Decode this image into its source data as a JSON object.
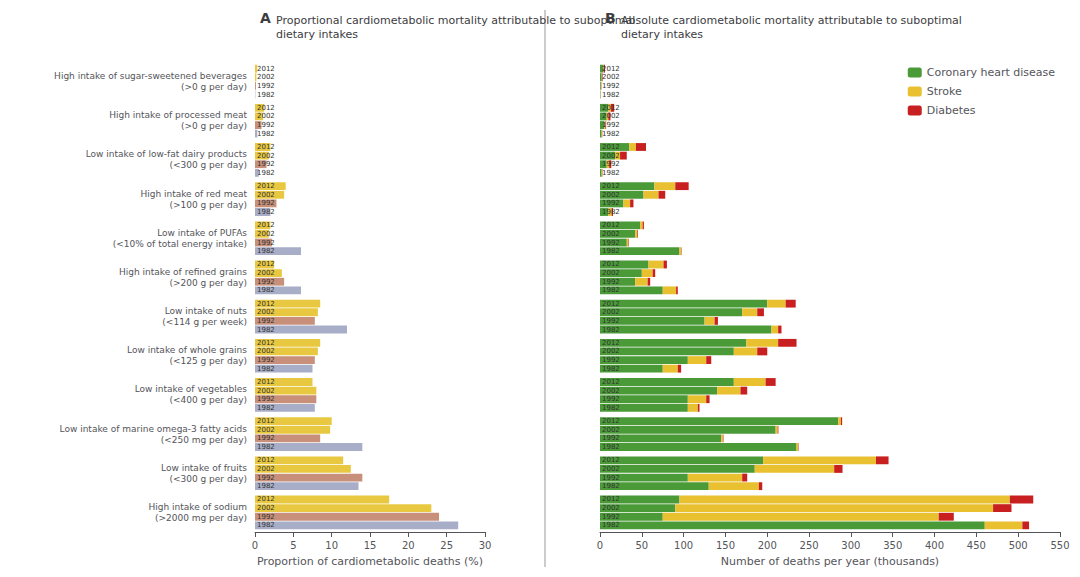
{
  "chart_data": [
    {
      "type": "bar",
      "orientation": "horizontal",
      "title": "A",
      "subtitle": "Proportional cardiometabolic mortality attributable to suboptimal\ndietary intakes",
      "xlabel": "Proportion of cardiometabolic deaths (%)",
      "categories": [
        "High intake of sugar-sweetened beverages\n(>0 g per day)",
        "High intake of processed meat\n(>0 g per day)",
        "Low intake of low-fat dairy products\n(<300 g per day)",
        "High intake of red meat\n(>100 g per day)",
        "Low intake of PUFAs\n(<10% of total energy intake)",
        "High intake of refined grains\n(>200 g per day)",
        "Low intake of nuts\n(<114 g per week)",
        "Low intake of whole grains\n(<125 g per day)",
        "Low intake of vegetables\n(<400 g per day)",
        "Low intake of marine omega-3 fatty acids\n(<250 mg per day)",
        "Low intake of fruits\n(<300 g per day)",
        "High intake of sodium\n(>2000 mg per day)"
      ],
      "series": [
        {
          "name": "2012",
          "color": "#e8c840",
          "values": [
            0.28,
            1.2,
            2.0,
            4.0,
            2.0,
            2.5,
            8.5,
            8.5,
            7.5,
            10.0,
            11.5,
            17.5
          ]
        },
        {
          "name": "2002",
          "color": "#e8c840",
          "values": [
            0.18,
            1.05,
            1.8,
            3.8,
            1.8,
            3.5,
            8.2,
            8.2,
            8.0,
            9.8,
            12.5,
            23.0
          ]
        },
        {
          "name": "1992",
          "color": "#c8907a",
          "values": [
            0.12,
            0.85,
            1.5,
            2.8,
            2.2,
            3.8,
            7.8,
            7.8,
            8.0,
            8.5,
            14.0,
            24.0
          ]
        },
        {
          "name": "1982",
          "color": "#a8aec8",
          "values": [
            0.05,
            0.3,
            0.5,
            2.0,
            6.0,
            6.0,
            12.0,
            7.5,
            7.8,
            14.0,
            13.5,
            26.5
          ]
        }
      ],
      "xlim": [
        0,
        30
      ],
      "xticks": [
        0,
        5,
        10,
        15,
        20,
        25,
        30
      ],
      "grid": false
    },
    {
      "type": "bar",
      "orientation": "horizontal",
      "stacked": true,
      "title": "B",
      "subtitle": "Absolute cardiometabolic mortality attributable to suboptimal\ndietary intakes",
      "xlabel": "Number of deaths per year (thousands)",
      "categories": [
        "High intake of sugar-sweetened beverages\n(>0 g per day)",
        "High intake of processed meat\n(>0 g per day)",
        "Low intake of low-fat dairy products\n(<300 g per day)",
        "High intake of red meat\n(>100 g per day)",
        "Low intake of PUFAs\n(<10% of total energy intake)",
        "High intake of refined grains\n(>200 g per day)",
        "Low intake of nuts\n(<114 g per week)",
        "Low intake of whole grains\n(<125 g per day)",
        "Low intake of vegetables\n(<400 g per day)",
        "Low intake of marine omega-3 fatty acids\n(<250 mg per day)",
        "Low intake of fruits\n(<300 g per day)",
        "High intake of sodium\n(>2000 mg per day)"
      ],
      "years": [
        "2012",
        "2002",
        "1992",
        "1982"
      ],
      "series": [
        {
          "name": "Coronary heart disease",
          "color": "#4a9a38",
          "values": [
            [
              4,
              2,
              1,
              0.5
            ],
            [
              10,
              8,
              5,
              2
            ],
            [
              35,
              18,
              8,
              2
            ],
            [
              65,
              52,
              28,
              10
            ],
            [
              48,
              42,
              32,
              95
            ],
            [
              58,
              50,
              42,
              75
            ],
            [
              200,
              170,
              125,
              205
            ],
            [
              175,
              160,
              105,
              75
            ],
            [
              160,
              140,
              105,
              105
            ],
            [
              285,
              210,
              145,
              235
            ],
            [
              195,
              185,
              105,
              130
            ],
            [
              95,
              90,
              75,
              460
            ]
          ]
        },
        {
          "name": "Stroke",
          "color": "#e8c030",
          "values": [
            [
              0.5,
              0.3,
              0.2,
              0.1
            ],
            [
              3,
              2,
              1.5,
              0.5
            ],
            [
              8,
              6,
              3,
              0.5
            ],
            [
              25,
              18,
              8,
              4
            ],
            [
              3,
              2.5,
              2,
              2
            ],
            [
              18,
              13,
              15,
              16
            ],
            [
              22,
              18,
              12,
              8
            ],
            [
              38,
              28,
              22,
              18
            ],
            [
              38,
              28,
              22,
              12
            ],
            [
              3,
              2.5,
              2,
              2
            ],
            [
              135,
              95,
              65,
              60
            ],
            [
              395,
              380,
              330,
              45
            ]
          ]
        },
        {
          "name": "Diabetes",
          "color": "#c82020",
          "values": [
            [
              1.5,
              0.8,
              0.4,
              0.1
            ],
            [
              4,
              2.5,
              0.8,
              0.3
            ],
            [
              12,
              8,
              2.5,
              0.4
            ],
            [
              16,
              8,
              4,
              1.5
            ],
            [
              1.5,
              0.8,
              0.6,
              0.5
            ],
            [
              4,
              3,
              3,
              2
            ],
            [
              12,
              8,
              4,
              4
            ],
            [
              22,
              12,
              6,
              4
            ],
            [
              12,
              8,
              4,
              2
            ],
            [
              1.5,
              0.8,
              0.6,
              0.5
            ],
            [
              15,
              10,
              6,
              4
            ],
            [
              28,
              22,
              18,
              8
            ]
          ]
        }
      ],
      "xlim": [
        0,
        550
      ],
      "xticks": [
        0,
        50,
        100,
        150,
        200,
        250,
        300,
        350,
        400,
        450,
        500,
        550
      ],
      "grid": false,
      "legend": "upper right",
      "tick_labels": "x"
    }
  ]
}
